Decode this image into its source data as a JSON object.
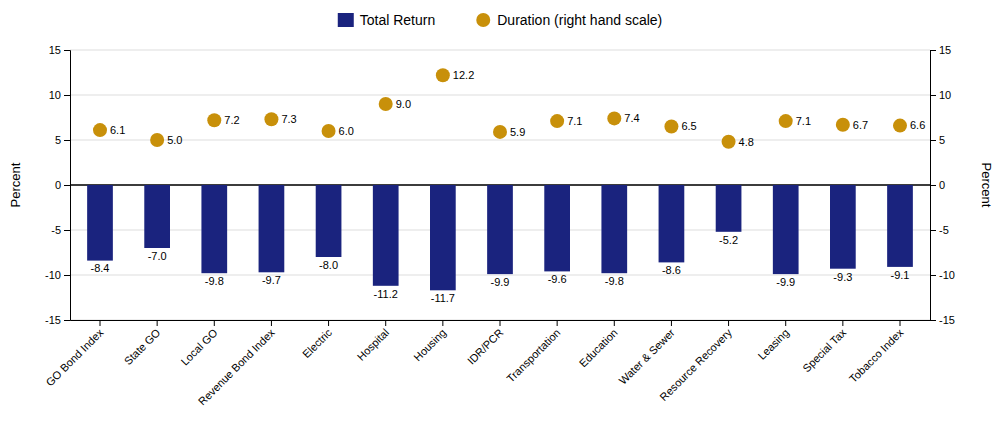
{
  "chart_data": {
    "type": "bar",
    "categories": [
      "GO Bond Index",
      "State GO",
      "Local GO",
      "Revenue Bond Index",
      "Electric",
      "Hospital",
      "Housing",
      "IDR/PCR",
      "Transportation",
      "Education",
      "Water & Sewer",
      "Resource Recovery",
      "Leasing",
      "Special Tax",
      "Tobacco Index"
    ],
    "series": [
      {
        "name": "Total Return",
        "type": "bar",
        "color": "#1a237e",
        "values": [
          -8.4,
          -7.0,
          -9.8,
          -9.7,
          -8.0,
          -11.2,
          -11.7,
          -9.9,
          -9.6,
          -9.8,
          -8.6,
          -5.2,
          -9.9,
          -9.3,
          -9.1
        ],
        "value_labels": [
          "-8.4",
          "-7.0",
          "-9.8",
          "-9.7",
          "-8.0",
          "-11.2",
          "-11.7",
          "-9.9",
          "-9.6",
          "-9.8",
          "-8.6",
          "-5.2",
          "-9.9",
          "-9.3",
          "-9.1"
        ]
      },
      {
        "name": "Duration (right hand scale)",
        "type": "scatter",
        "axis": "y2",
        "color": "#c8900a",
        "marker": "circle",
        "values": [
          6.1,
          5.0,
          7.2,
          7.3,
          6.0,
          9.0,
          12.2,
          5.9,
          7.1,
          7.4,
          6.5,
          4.8,
          7.1,
          6.7,
          6.6
        ],
        "value_labels": [
          "6.1",
          "5.0",
          "7.2",
          "7.3",
          "6.0",
          "9.0",
          "12.2",
          "5.9",
          "7.1",
          "7.4",
          "6.5",
          "4.8",
          "7.1",
          "6.7",
          "6.6"
        ]
      }
    ],
    "y_label": "Percent",
    "y2_label": "Percent",
    "ylim": [
      -15,
      15
    ],
    "yticks": [
      -15,
      -10,
      -5,
      0,
      5,
      10,
      15
    ],
    "y2lim": [
      -15,
      15
    ],
    "y2ticks": [
      -15,
      -10,
      -5,
      0,
      5,
      10,
      15
    ],
    "grid": true,
    "legend": "top",
    "data_labels": true
  }
}
